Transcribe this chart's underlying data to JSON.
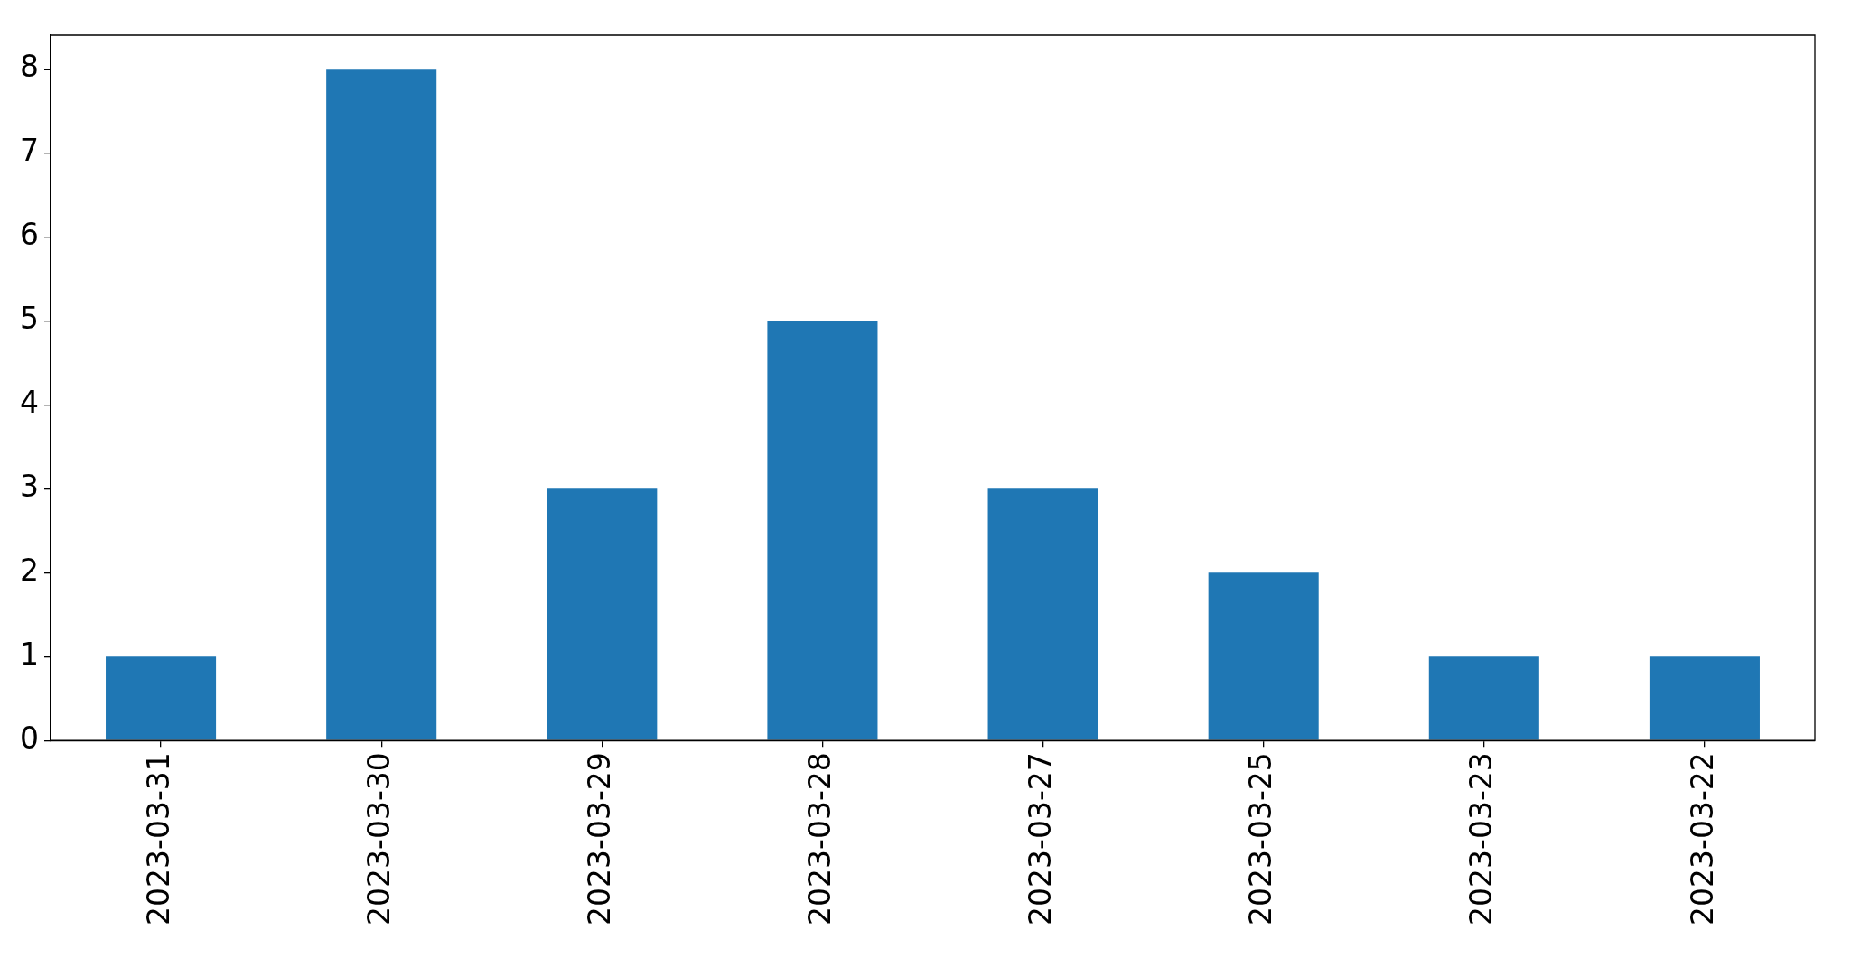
{
  "chart_data": {
    "type": "bar",
    "categories": [
      "2023-03-31",
      "2023-03-30",
      "2023-03-29",
      "2023-03-28",
      "2023-03-27",
      "2023-03-25",
      "2023-03-23",
      "2023-03-22"
    ],
    "values": [
      1,
      8,
      3,
      5,
      3,
      2,
      1,
      1
    ],
    "color": "#1f77b4",
    "ylim": [
      0,
      8.4
    ],
    "yticks": [
      0,
      1,
      2,
      3,
      4,
      5,
      6,
      7,
      8
    ]
  }
}
